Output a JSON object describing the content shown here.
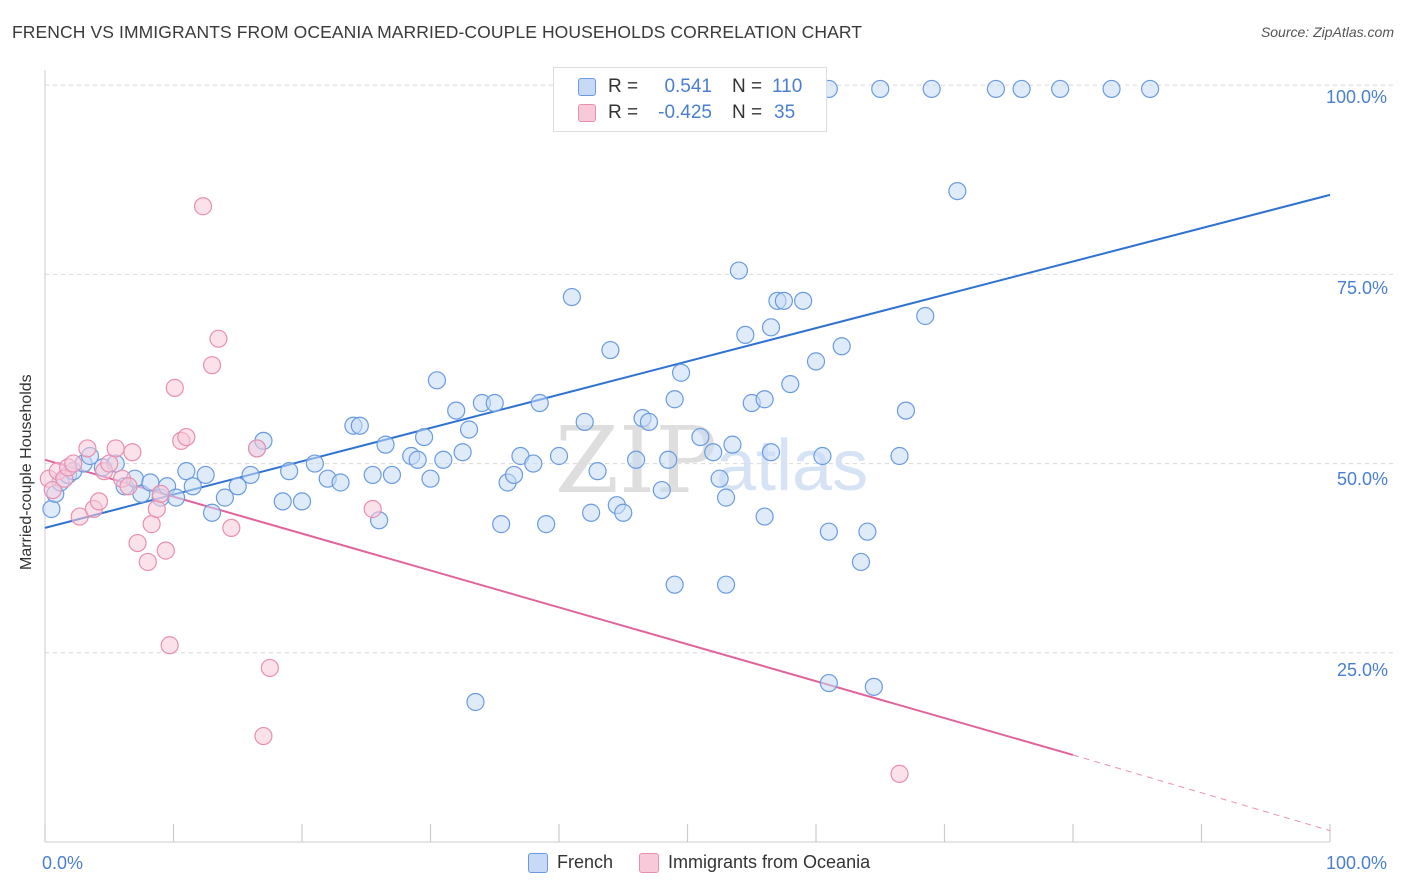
{
  "title": "FRENCH VS IMMIGRANTS FROM OCEANIA MARRIED-COUPLE HOUSEHOLDS CORRELATION CHART",
  "source": "Source: ZipAtlas.com",
  "watermark": {
    "zip": "ZIP",
    "atlas": "atlas"
  },
  "colors": {
    "blue": "#6a9be0",
    "blue_fill": "#c7daf5",
    "blue_line": "#2f72d0",
    "pink": "#e88fb0",
    "pink_fill": "#f8cad9",
    "pink_line": "#e0649a",
    "tick_text": "#4a7fd0",
    "grid": "#d9d9d9"
  },
  "legend": {
    "rows": [
      {
        "r_label": "R =",
        "r_value": "0.541",
        "n_label": "N =",
        "n_value": "110"
      },
      {
        "r_label": "R =",
        "r_value": "-0.425",
        "n_label": "N =",
        "n_value": "35"
      }
    ]
  },
  "bottom_legend": [
    "French",
    "Immigrants from Oceania"
  ],
  "chart_data": {
    "type": "scatter",
    "title": "FRENCH VS IMMIGRANTS FROM OCEANIA MARRIED-COUPLE HOUSEHOLDS CORRELATION CHART",
    "xlabel": "",
    "ylabel": "Married-couple Households",
    "xlim": [
      0,
      100
    ],
    "ylim": [
      0,
      102
    ],
    "x_tick_labels": [
      "0.0%",
      "100.0%"
    ],
    "y_tick_labels": [
      "25.0%",
      "50.0%",
      "75.0%",
      "100.0%"
    ],
    "y_ticks": [
      25,
      50,
      75,
      100
    ],
    "grid": true,
    "legend_position": "top-center",
    "series": [
      {
        "name": "French",
        "r": 0.541,
        "n": 110,
        "trend": {
          "x": [
            0,
            100
          ],
          "y": [
            41.5,
            85.5
          ]
        },
        "points": [
          [
            0.5,
            44
          ],
          [
            0.8,
            46
          ],
          [
            1.2,
            47.5
          ],
          [
            1.8,
            48.5
          ],
          [
            2.2,
            49
          ],
          [
            3.0,
            50
          ],
          [
            3.5,
            51
          ],
          [
            4.5,
            49.5
          ],
          [
            5.5,
            50
          ],
          [
            6.2,
            47
          ],
          [
            7,
            48
          ],
          [
            7.5,
            46
          ],
          [
            8.2,
            47.5
          ],
          [
            9.0,
            45.5
          ],
          [
            9.5,
            47
          ],
          [
            10.2,
            45.5
          ],
          [
            11.0,
            49
          ],
          [
            11.5,
            47
          ],
          [
            12.5,
            48.5
          ],
          [
            14.0,
            45.5
          ],
          [
            13.0,
            43.5
          ],
          [
            15,
            47
          ],
          [
            16,
            48.5
          ],
          [
            16.5,
            52
          ],
          [
            17,
            53
          ],
          [
            18.5,
            45
          ],
          [
            19,
            49
          ],
          [
            20,
            45
          ],
          [
            21.0,
            50
          ],
          [
            22,
            48
          ],
          [
            23,
            47.5
          ],
          [
            24,
            55
          ],
          [
            24.5,
            55
          ],
          [
            25.5,
            48.5
          ],
          [
            26,
            42.5
          ],
          [
            26.5,
            52.5
          ],
          [
            27,
            48.5
          ],
          [
            28.5,
            51
          ],
          [
            29,
            50.5
          ],
          [
            29.5,
            53.5
          ],
          [
            30,
            48
          ],
          [
            30.5,
            61
          ],
          [
            31,
            50.5
          ],
          [
            32,
            57
          ],
          [
            32.5,
            51.5
          ],
          [
            33,
            54.5
          ],
          [
            34,
            58
          ],
          [
            35,
            58
          ],
          [
            35.5,
            42
          ],
          [
            36,
            47.5
          ],
          [
            36.5,
            48.5
          ],
          [
            37,
            51
          ],
          [
            38,
            50
          ],
          [
            38.5,
            58
          ],
          [
            39,
            42
          ],
          [
            40,
            51
          ],
          [
            41,
            72
          ],
          [
            42,
            55.5
          ],
          [
            42.5,
            43.5
          ],
          [
            43,
            49
          ],
          [
            44,
            65
          ],
          [
            44.5,
            44.5
          ],
          [
            45,
            43.5
          ],
          [
            46,
            50.5
          ],
          [
            46.5,
            56
          ],
          [
            47,
            55.5
          ],
          [
            48,
            46.5
          ],
          [
            48.5,
            50.5
          ],
          [
            49,
            58.5
          ],
          [
            49.5,
            62
          ],
          [
            51,
            53.5
          ],
          [
            52,
            51.5
          ],
          [
            52.5,
            48
          ],
          [
            53,
            45.5
          ],
          [
            53.5,
            52.5
          ],
          [
            54,
            75.5
          ],
          [
            54.5,
            67
          ],
          [
            55,
            58
          ],
          [
            56,
            58.5
          ],
          [
            56.5,
            68
          ],
          [
            57,
            71.5
          ],
          [
            57.5,
            71.5
          ],
          [
            58,
            60.5
          ],
          [
            60,
            63.5
          ],
          [
            62,
            65.5
          ],
          [
            64,
            41
          ],
          [
            66.5,
            51
          ],
          [
            67,
            57
          ],
          [
            56,
            43
          ],
          [
            56.5,
            51.5
          ],
          [
            59,
            99.5
          ],
          [
            61,
            99.5
          ],
          [
            65,
            99.5
          ],
          [
            69,
            99.5
          ],
          [
            74,
            99.5
          ],
          [
            76,
            99.5
          ],
          [
            79,
            99.5
          ],
          [
            83,
            99.5
          ],
          [
            86,
            99.5
          ],
          [
            60.5,
            51
          ],
          [
            71,
            86
          ],
          [
            68.5,
            69.5
          ],
          [
            59,
            71.5
          ],
          [
            63.5,
            37
          ],
          [
            61,
            41
          ],
          [
            53,
            34
          ],
          [
            33.5,
            18.5
          ],
          [
            61,
            21
          ],
          [
            64.5,
            20.5
          ],
          [
            49,
            34
          ]
        ]
      },
      {
        "name": "Immigrants from Oceania",
        "r": -0.425,
        "n": 35,
        "trend": {
          "x": [
            0,
            80
          ],
          "y": [
            50.5,
            11.5
          ]
        },
        "trend_dashed": {
          "x": [
            80,
            100
          ],
          "y": [
            11.5,
            1.5
          ]
        },
        "points": [
          [
            0.3,
            48
          ],
          [
            0.6,
            46.5
          ],
          [
            1.0,
            49
          ],
          [
            1.5,
            48
          ],
          [
            1.8,
            49.5
          ],
          [
            2.2,
            50
          ],
          [
            2.7,
            43
          ],
          [
            3.3,
            52
          ],
          [
            3.8,
            44
          ],
          [
            4.2,
            45
          ],
          [
            4.6,
            49
          ],
          [
            5.0,
            50
          ],
          [
            5.5,
            52
          ],
          [
            6.0,
            48
          ],
          [
            6.5,
            47
          ],
          [
            6.8,
            51.5
          ],
          [
            7.2,
            39.5
          ],
          [
            8.0,
            37
          ],
          [
            8.3,
            42
          ],
          [
            8.7,
            44
          ],
          [
            9.0,
            46
          ],
          [
            9.4,
            38.5
          ],
          [
            9.7,
            26
          ],
          [
            10.1,
            60
          ],
          [
            10.6,
            53
          ],
          [
            11.0,
            53.5
          ],
          [
            12.3,
            84
          ],
          [
            13.0,
            63
          ],
          [
            13.5,
            66.5
          ],
          [
            14.5,
            41.5
          ],
          [
            16.5,
            52
          ],
          [
            17.5,
            23
          ],
          [
            25.5,
            44
          ],
          [
            17.0,
            14
          ],
          [
            66.5,
            9
          ]
        ]
      }
    ]
  }
}
